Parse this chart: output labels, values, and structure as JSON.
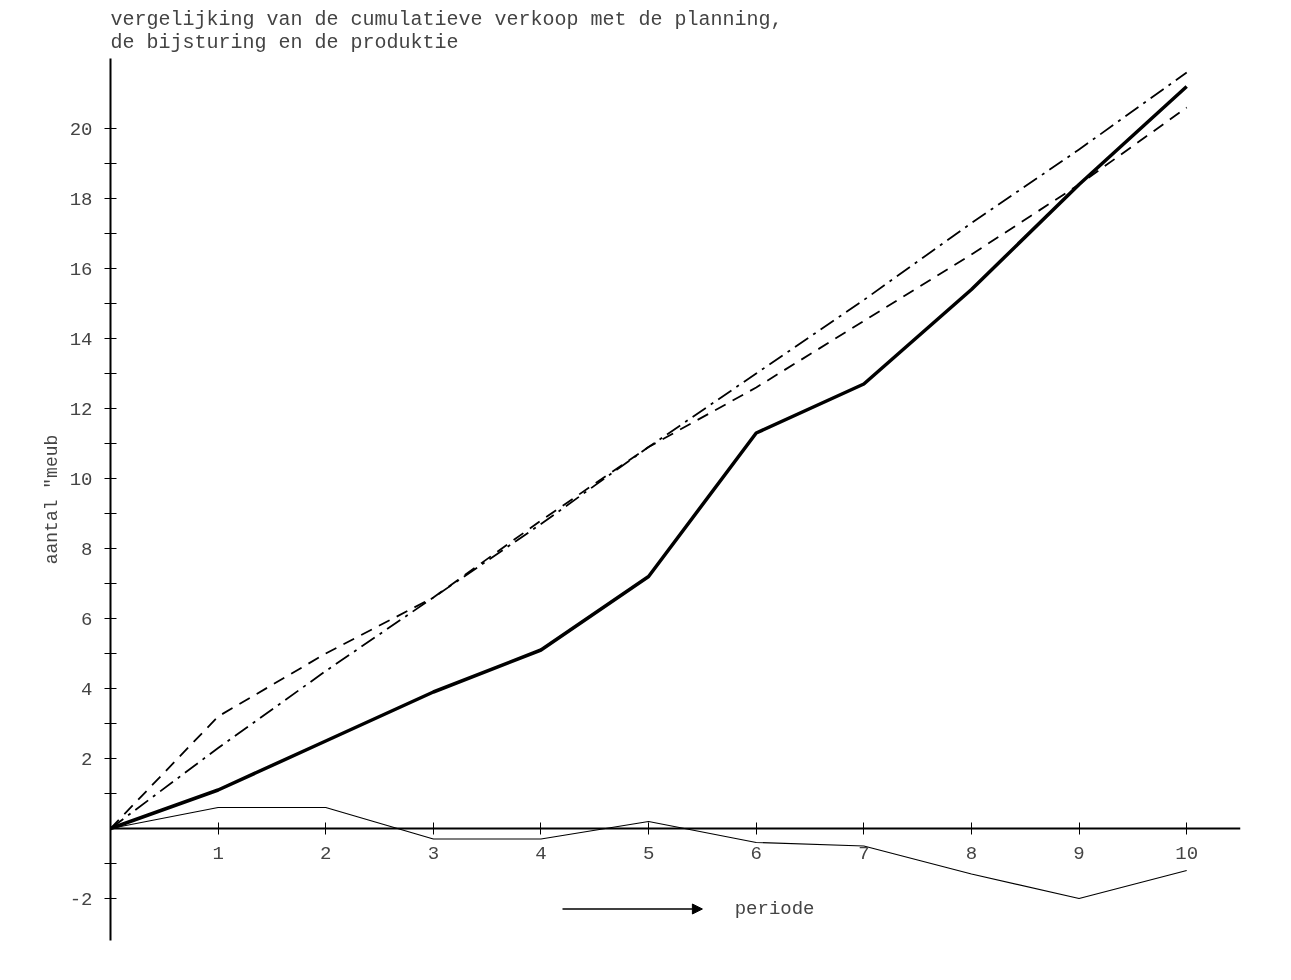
{
  "chart_data": {
    "type": "line",
    "title": "vergelijking van de cumulatieve verkoop met de planning,\nde bijsturing en de produktie",
    "xlabel": "periode",
    "ylabel": "aantal \"meub",
    "x": [
      0,
      1,
      2,
      3,
      4,
      5,
      6,
      7,
      8,
      9,
      10
    ],
    "series": [
      {
        "color": "#000000",
        "line_style": "solid",
        "values": [
          0,
          1.1,
          2.5,
          3.9,
          5.1,
          7.2,
          11.3,
          12.7,
          15.4,
          18.4,
          21.2
        ]
      },
      {
        "color": "#000000",
        "line_style": "dashdot",
        "values": [
          0,
          2.3,
          4.5,
          6.6,
          8.7,
          10.9,
          13.0,
          15.1,
          17.3,
          19.4,
          21.6
        ]
      },
      {
        "color": "#000000",
        "line_style": "dashed",
        "values": [
          0,
          3.2,
          5.0,
          6.6,
          8.8,
          10.9,
          12.6,
          14.5,
          16.4,
          18.4,
          20.6
        ]
      },
      {
        "color": "#000000",
        "line_style": "solid",
        "values": [
          0,
          0.6,
          0.6,
          -0.3,
          -0.3,
          0.2,
          -0.4,
          -0.5,
          -1.3,
          -2.0,
          -1.2
        ]
      }
    ],
    "xlim": [
      0,
      10.5
    ],
    "ylim": [
      -3.2,
      22
    ],
    "xticks": [
      1,
      2,
      3,
      4,
      5,
      6,
      7,
      8,
      9,
      10
    ],
    "yticks": [
      -2,
      {
        "value": -1,
        "label": null
      },
      {
        "value": 1,
        "label": null
      },
      2,
      {
        "value": 3,
        "label": null
      },
      4,
      {
        "value": 5,
        "label": null
      },
      6,
      {
        "value": 7,
        "label": null
      },
      8,
      {
        "value": 9,
        "label": null
      },
      10,
      {
        "value": 11,
        "label": null
      },
      12,
      {
        "value": 13,
        "label": null
      },
      14,
      {
        "value": 15,
        "label": null
      },
      16,
      {
        "value": 17,
        "label": null
      },
      18,
      {
        "value": 19,
        "label": null
      },
      20
    ],
    "grid": false,
    "marker": "none"
  }
}
